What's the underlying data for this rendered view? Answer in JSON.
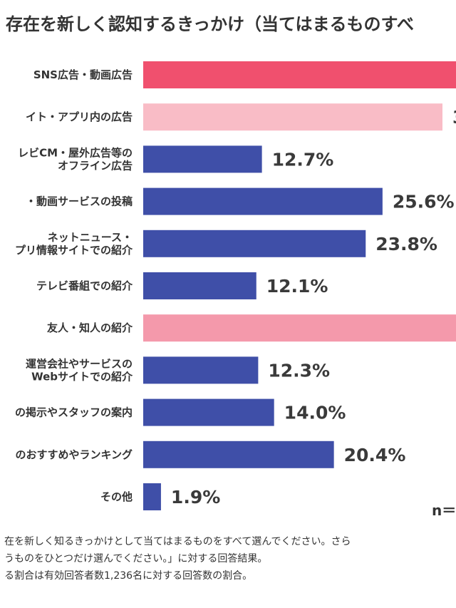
{
  "chart_data": {
    "type": "bar",
    "orientation": "horizontal",
    "title": "存在を新しく認知するきっかけ（当てはまるものすべ",
    "categories": [
      [
        "SNS広告・動画広告"
      ],
      [
        "イト・アプリ内の広告"
      ],
      [
        "レビCM・屋外広告等の",
        "オフライン広告"
      ],
      [
        "・動画サービスの投稿"
      ],
      [
        "ネットニュース・",
        "プリ情報サイトでの紹介"
      ],
      [
        "テレビ番組での紹介"
      ],
      [
        "友人・知人の紹介"
      ],
      [
        "運営会社やサービスの",
        "Webサイトでの紹介"
      ],
      [
        "の掲示やスタッフの案内"
      ],
      [
        "のおすすめやランキング"
      ],
      [
        "その他"
      ]
    ],
    "values": [
      null,
      null,
      12.7,
      25.6,
      23.8,
      12.1,
      null,
      12.3,
      14.0,
      20.4,
      1.9
    ],
    "value_labels": [
      "",
      "3",
      "12.7%",
      "25.6%",
      "23.8%",
      "12.1%",
      "",
      "12.3%",
      "14.0%",
      "20.4%",
      "1.9%"
    ],
    "bar_colors": [
      "#f0506e",
      "#f9bcc6",
      "#3f4fa8",
      "#3f4fa8",
      "#3f4fa8",
      "#3f4fa8",
      "#f499ab",
      "#3f4fa8",
      "#3f4fa8",
      "#3f4fa8",
      "#3f4fa8"
    ],
    "bars_extend_past_edge": [
      true,
      false,
      false,
      false,
      false,
      false,
      true,
      false,
      false,
      false,
      false
    ],
    "gridlines": false,
    "legend": "none"
  },
  "sample_label": "n＝",
  "notes": [
    "在を新しく知るきっかけとして当てはまるものをすべて選んでください。さら",
    "うものをひとつだけ選んでください。」に対する回答結果。",
    "る割合は有効回答者数1,236名に対する回答数の割合。"
  ]
}
